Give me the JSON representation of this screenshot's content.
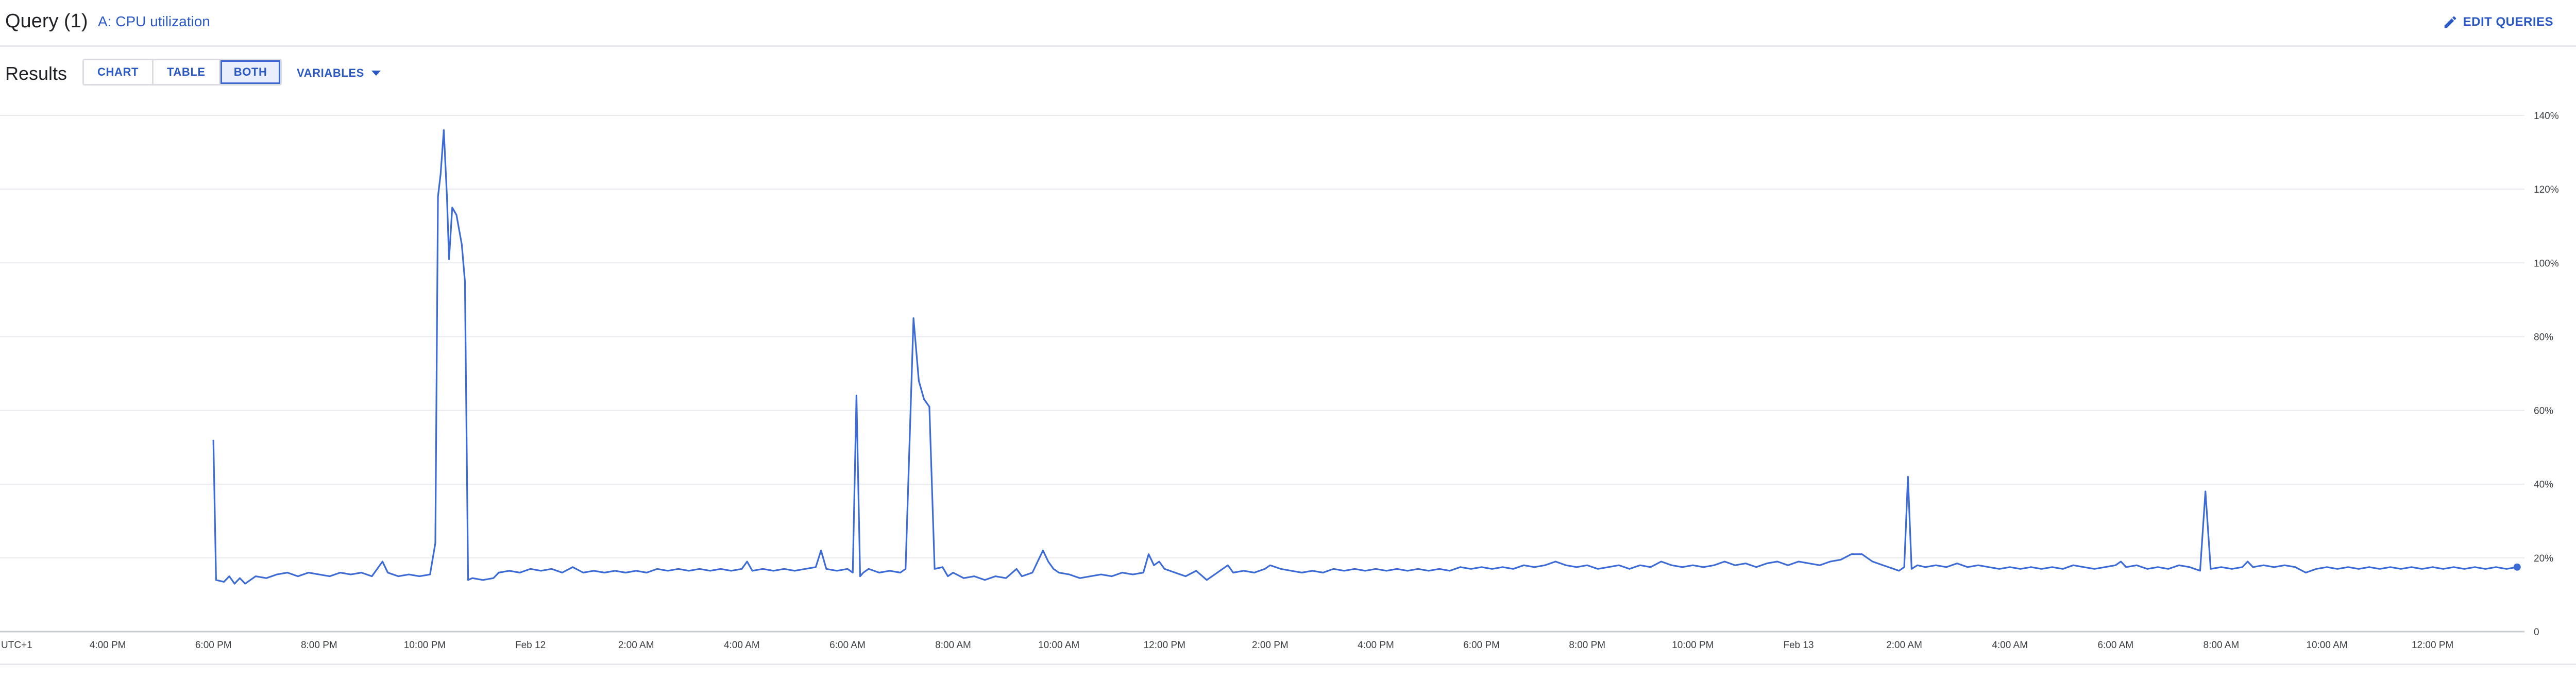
{
  "header": {
    "query_title": "Query (1)",
    "query_link": "A: CPU utilization",
    "edit_queries_label": "EDIT QUERIES",
    "edit_icon": "pencil-icon"
  },
  "results": {
    "label": "Results",
    "view_buttons": [
      {
        "label": "CHART",
        "selected": false
      },
      {
        "label": "TABLE",
        "selected": false
      },
      {
        "label": "BOTH",
        "selected": true
      }
    ],
    "variables_label": "VARIABLES",
    "variables_icon": "caret-down-icon"
  },
  "colors": {
    "accent": "#2b59c3",
    "series": "#3d6bd6",
    "grid": "#e8eaed"
  },
  "chart_data": {
    "type": "line",
    "title": "",
    "xlabel": "",
    "ylabel": "",
    "timezone_label": "UTC+1",
    "ylim": [
      0,
      140
    ],
    "y_ticks": [
      {
        "value": 0,
        "label": "0"
      },
      {
        "value": 20,
        "label": "20%"
      },
      {
        "value": 40,
        "label": "40%"
      },
      {
        "value": 60,
        "label": "60%"
      },
      {
        "value": 80,
        "label": "80%"
      },
      {
        "value": 100,
        "label": "100%"
      },
      {
        "value": 120,
        "label": "120%"
      },
      {
        "value": 140,
        "label": "140%"
      }
    ],
    "x_unit": "hours since 2:00 PM Feb 11",
    "xlim": [
      0,
      47.7
    ],
    "x_ticks": [
      {
        "value": 0,
        "label": "UTC+1"
      },
      {
        "value": 2,
        "label": "4:00 PM"
      },
      {
        "value": 4,
        "label": "6:00 PM"
      },
      {
        "value": 6,
        "label": "8:00 PM"
      },
      {
        "value": 8,
        "label": "10:00 PM"
      },
      {
        "value": 10,
        "label": "Feb 12"
      },
      {
        "value": 12,
        "label": "2:00 AM"
      },
      {
        "value": 14,
        "label": "4:00 AM"
      },
      {
        "value": 16,
        "label": "6:00 AM"
      },
      {
        "value": 18,
        "label": "8:00 AM"
      },
      {
        "value": 20,
        "label": "10:00 AM"
      },
      {
        "value": 22,
        "label": "12:00 PM"
      },
      {
        "value": 24,
        "label": "2:00 PM"
      },
      {
        "value": 26,
        "label": "4:00 PM"
      },
      {
        "value": 28,
        "label": "6:00 PM"
      },
      {
        "value": 30,
        "label": "8:00 PM"
      },
      {
        "value": 32,
        "label": "10:00 PM"
      },
      {
        "value": 34,
        "label": "Feb 13"
      },
      {
        "value": 36,
        "label": "2:00 AM"
      },
      {
        "value": 38,
        "label": "4:00 AM"
      },
      {
        "value": 40,
        "label": "6:00 AM"
      },
      {
        "value": 42,
        "label": "8:00 AM"
      },
      {
        "value": 44,
        "label": "10:00 AM"
      },
      {
        "value": 46,
        "label": "12:00 PM"
      }
    ],
    "series": [
      {
        "name": "CPU utilization",
        "points": [
          [
            4.0,
            52
          ],
          [
            4.05,
            14
          ],
          [
            4.2,
            13.5
          ],
          [
            4.3,
            15
          ],
          [
            4.4,
            13
          ],
          [
            4.5,
            14.5
          ],
          [
            4.6,
            13
          ],
          [
            4.7,
            14
          ],
          [
            4.8,
            15
          ],
          [
            5.0,
            14.5
          ],
          [
            5.2,
            15.5
          ],
          [
            5.4,
            16
          ],
          [
            5.6,
            15
          ],
          [
            5.8,
            16
          ],
          [
            6.0,
            15.5
          ],
          [
            6.2,
            15
          ],
          [
            6.4,
            16
          ],
          [
            6.6,
            15.5
          ],
          [
            6.8,
            16
          ],
          [
            7.0,
            15
          ],
          [
            7.2,
            19
          ],
          [
            7.3,
            16
          ],
          [
            7.5,
            15
          ],
          [
            7.7,
            15.5
          ],
          [
            7.9,
            15
          ],
          [
            8.1,
            15.5
          ],
          [
            8.2,
            24
          ],
          [
            8.25,
            118
          ],
          [
            8.3,
            124
          ],
          [
            8.36,
            136
          ],
          [
            8.42,
            118
          ],
          [
            8.46,
            101
          ],
          [
            8.52,
            115
          ],
          [
            8.6,
            113
          ],
          [
            8.7,
            105
          ],
          [
            8.76,
            95
          ],
          [
            8.82,
            14
          ],
          [
            8.9,
            14.5
          ],
          [
            9.1,
            14
          ],
          [
            9.3,
            14.5
          ],
          [
            9.4,
            16
          ],
          [
            9.6,
            16.5
          ],
          [
            9.8,
            16
          ],
          [
            10.0,
            17
          ],
          [
            10.2,
            16.5
          ],
          [
            10.4,
            17
          ],
          [
            10.6,
            16
          ],
          [
            10.8,
            17.5
          ],
          [
            11.0,
            16
          ],
          [
            11.2,
            16.5
          ],
          [
            11.4,
            16
          ],
          [
            11.6,
            16.5
          ],
          [
            11.8,
            16
          ],
          [
            12.0,
            16.5
          ],
          [
            12.2,
            16
          ],
          [
            12.4,
            17
          ],
          [
            12.6,
            16.5
          ],
          [
            12.8,
            17
          ],
          [
            13.0,
            16.5
          ],
          [
            13.2,
            17
          ],
          [
            13.4,
            16.5
          ],
          [
            13.6,
            17
          ],
          [
            13.8,
            16.5
          ],
          [
            14.0,
            17
          ],
          [
            14.1,
            19
          ],
          [
            14.2,
            16.5
          ],
          [
            14.4,
            17
          ],
          [
            14.6,
            16.5
          ],
          [
            14.8,
            17
          ],
          [
            15.0,
            16.5
          ],
          [
            15.2,
            17
          ],
          [
            15.4,
            17.5
          ],
          [
            15.5,
            22
          ],
          [
            15.6,
            17
          ],
          [
            15.8,
            16.5
          ],
          [
            16.0,
            17
          ],
          [
            16.1,
            16
          ],
          [
            16.17,
            64
          ],
          [
            16.24,
            15
          ],
          [
            16.3,
            16
          ],
          [
            16.4,
            17
          ],
          [
            16.6,
            16
          ],
          [
            16.8,
            16.5
          ],
          [
            17.0,
            16
          ],
          [
            17.1,
            17
          ],
          [
            17.25,
            85
          ],
          [
            17.35,
            68
          ],
          [
            17.45,
            63
          ],
          [
            17.55,
            61
          ],
          [
            17.65,
            17
          ],
          [
            17.8,
            17.5
          ],
          [
            17.9,
            15
          ],
          [
            18.0,
            16
          ],
          [
            18.2,
            14.5
          ],
          [
            18.4,
            15
          ],
          [
            18.6,
            14
          ],
          [
            18.8,
            15
          ],
          [
            19.0,
            14.5
          ],
          [
            19.2,
            17
          ],
          [
            19.3,
            15
          ],
          [
            19.5,
            16
          ],
          [
            19.6,
            19
          ],
          [
            19.7,
            22
          ],
          [
            19.8,
            19
          ],
          [
            19.9,
            17
          ],
          [
            20.0,
            16
          ],
          [
            20.2,
            15.5
          ],
          [
            20.4,
            14.5
          ],
          [
            20.6,
            15
          ],
          [
            20.8,
            15.5
          ],
          [
            21.0,
            15
          ],
          [
            21.2,
            16
          ],
          [
            21.4,
            15.5
          ],
          [
            21.6,
            16
          ],
          [
            21.7,
            21
          ],
          [
            21.8,
            18
          ],
          [
            21.9,
            19
          ],
          [
            22.0,
            17
          ],
          [
            22.2,
            16
          ],
          [
            22.4,
            15
          ],
          [
            22.6,
            16.5
          ],
          [
            22.8,
            14
          ],
          [
            23.0,
            16
          ],
          [
            23.2,
            18
          ],
          [
            23.3,
            16
          ],
          [
            23.5,
            16.5
          ],
          [
            23.7,
            16
          ],
          [
            23.9,
            17
          ],
          [
            24.0,
            18
          ],
          [
            24.2,
            17
          ],
          [
            24.4,
            16.5
          ],
          [
            24.6,
            16
          ],
          [
            24.8,
            16.5
          ],
          [
            25.0,
            16
          ],
          [
            25.2,
            17
          ],
          [
            25.4,
            16.5
          ],
          [
            25.6,
            17
          ],
          [
            25.8,
            16.5
          ],
          [
            26.0,
            17
          ],
          [
            26.2,
            16.5
          ],
          [
            26.4,
            17
          ],
          [
            26.6,
            16.5
          ],
          [
            26.8,
            17
          ],
          [
            27.0,
            16.5
          ],
          [
            27.2,
            17
          ],
          [
            27.4,
            16.5
          ],
          [
            27.6,
            17.5
          ],
          [
            27.8,
            17
          ],
          [
            28.0,
            17.5
          ],
          [
            28.2,
            17
          ],
          [
            28.4,
            17.5
          ],
          [
            28.6,
            17
          ],
          [
            28.8,
            18
          ],
          [
            29.0,
            17.5
          ],
          [
            29.2,
            18
          ],
          [
            29.4,
            19
          ],
          [
            29.6,
            18
          ],
          [
            29.8,
            17.5
          ],
          [
            30.0,
            18
          ],
          [
            30.2,
            17
          ],
          [
            30.4,
            17.5
          ],
          [
            30.6,
            18
          ],
          [
            30.8,
            17
          ],
          [
            31.0,
            18
          ],
          [
            31.2,
            17.5
          ],
          [
            31.4,
            19
          ],
          [
            31.6,
            18
          ],
          [
            31.8,
            17.5
          ],
          [
            32.0,
            18
          ],
          [
            32.2,
            17.5
          ],
          [
            32.4,
            18
          ],
          [
            32.6,
            19
          ],
          [
            32.8,
            18
          ],
          [
            33.0,
            18.5
          ],
          [
            33.2,
            17.5
          ],
          [
            33.4,
            18.5
          ],
          [
            33.6,
            19
          ],
          [
            33.8,
            18
          ],
          [
            34.0,
            19
          ],
          [
            34.2,
            18.5
          ],
          [
            34.4,
            18
          ],
          [
            34.6,
            19
          ],
          [
            34.8,
            19.5
          ],
          [
            35.0,
            21
          ],
          [
            35.2,
            21
          ],
          [
            35.4,
            19
          ],
          [
            35.6,
            18
          ],
          [
            35.8,
            17
          ],
          [
            35.9,
            16.5
          ],
          [
            36.0,
            17.5
          ],
          [
            36.07,
            42
          ],
          [
            36.14,
            17
          ],
          [
            36.25,
            18
          ],
          [
            36.4,
            17.5
          ],
          [
            36.6,
            18
          ],
          [
            36.8,
            17.5
          ],
          [
            37.0,
            18.5
          ],
          [
            37.2,
            17.5
          ],
          [
            37.4,
            18
          ],
          [
            37.6,
            17.5
          ],
          [
            37.8,
            17
          ],
          [
            38.0,
            17.5
          ],
          [
            38.2,
            17
          ],
          [
            38.4,
            17.5
          ],
          [
            38.6,
            17
          ],
          [
            38.8,
            17.5
          ],
          [
            39.0,
            17
          ],
          [
            39.2,
            18
          ],
          [
            39.4,
            17.5
          ],
          [
            39.6,
            17
          ],
          [
            39.8,
            17.5
          ],
          [
            40.0,
            18
          ],
          [
            40.1,
            19
          ],
          [
            40.2,
            17.5
          ],
          [
            40.4,
            18
          ],
          [
            40.6,
            17
          ],
          [
            40.8,
            17.5
          ],
          [
            41.0,
            17
          ],
          [
            41.2,
            18
          ],
          [
            41.4,
            17.5
          ],
          [
            41.6,
            16.5
          ],
          [
            41.7,
            38
          ],
          [
            41.8,
            17
          ],
          [
            42.0,
            17.5
          ],
          [
            42.2,
            17
          ],
          [
            42.4,
            17.5
          ],
          [
            42.5,
            19
          ],
          [
            42.6,
            17.5
          ],
          [
            42.8,
            18
          ],
          [
            43.0,
            17.5
          ],
          [
            43.2,
            18
          ],
          [
            43.4,
            17.5
          ],
          [
            43.6,
            16
          ],
          [
            43.8,
            17
          ],
          [
            44.0,
            17.5
          ],
          [
            44.2,
            17
          ],
          [
            44.4,
            17.5
          ],
          [
            44.6,
            17
          ],
          [
            44.8,
            17.5
          ],
          [
            45.0,
            17
          ],
          [
            45.2,
            17.5
          ],
          [
            45.4,
            17
          ],
          [
            45.6,
            17.5
          ],
          [
            45.8,
            17
          ],
          [
            46.0,
            17.5
          ],
          [
            46.2,
            17
          ],
          [
            46.4,
            17.5
          ],
          [
            46.6,
            17
          ],
          [
            46.8,
            17.5
          ],
          [
            47.0,
            17
          ],
          [
            47.2,
            17.5
          ],
          [
            47.4,
            17
          ],
          [
            47.6,
            17.5
          ]
        ]
      }
    ]
  }
}
